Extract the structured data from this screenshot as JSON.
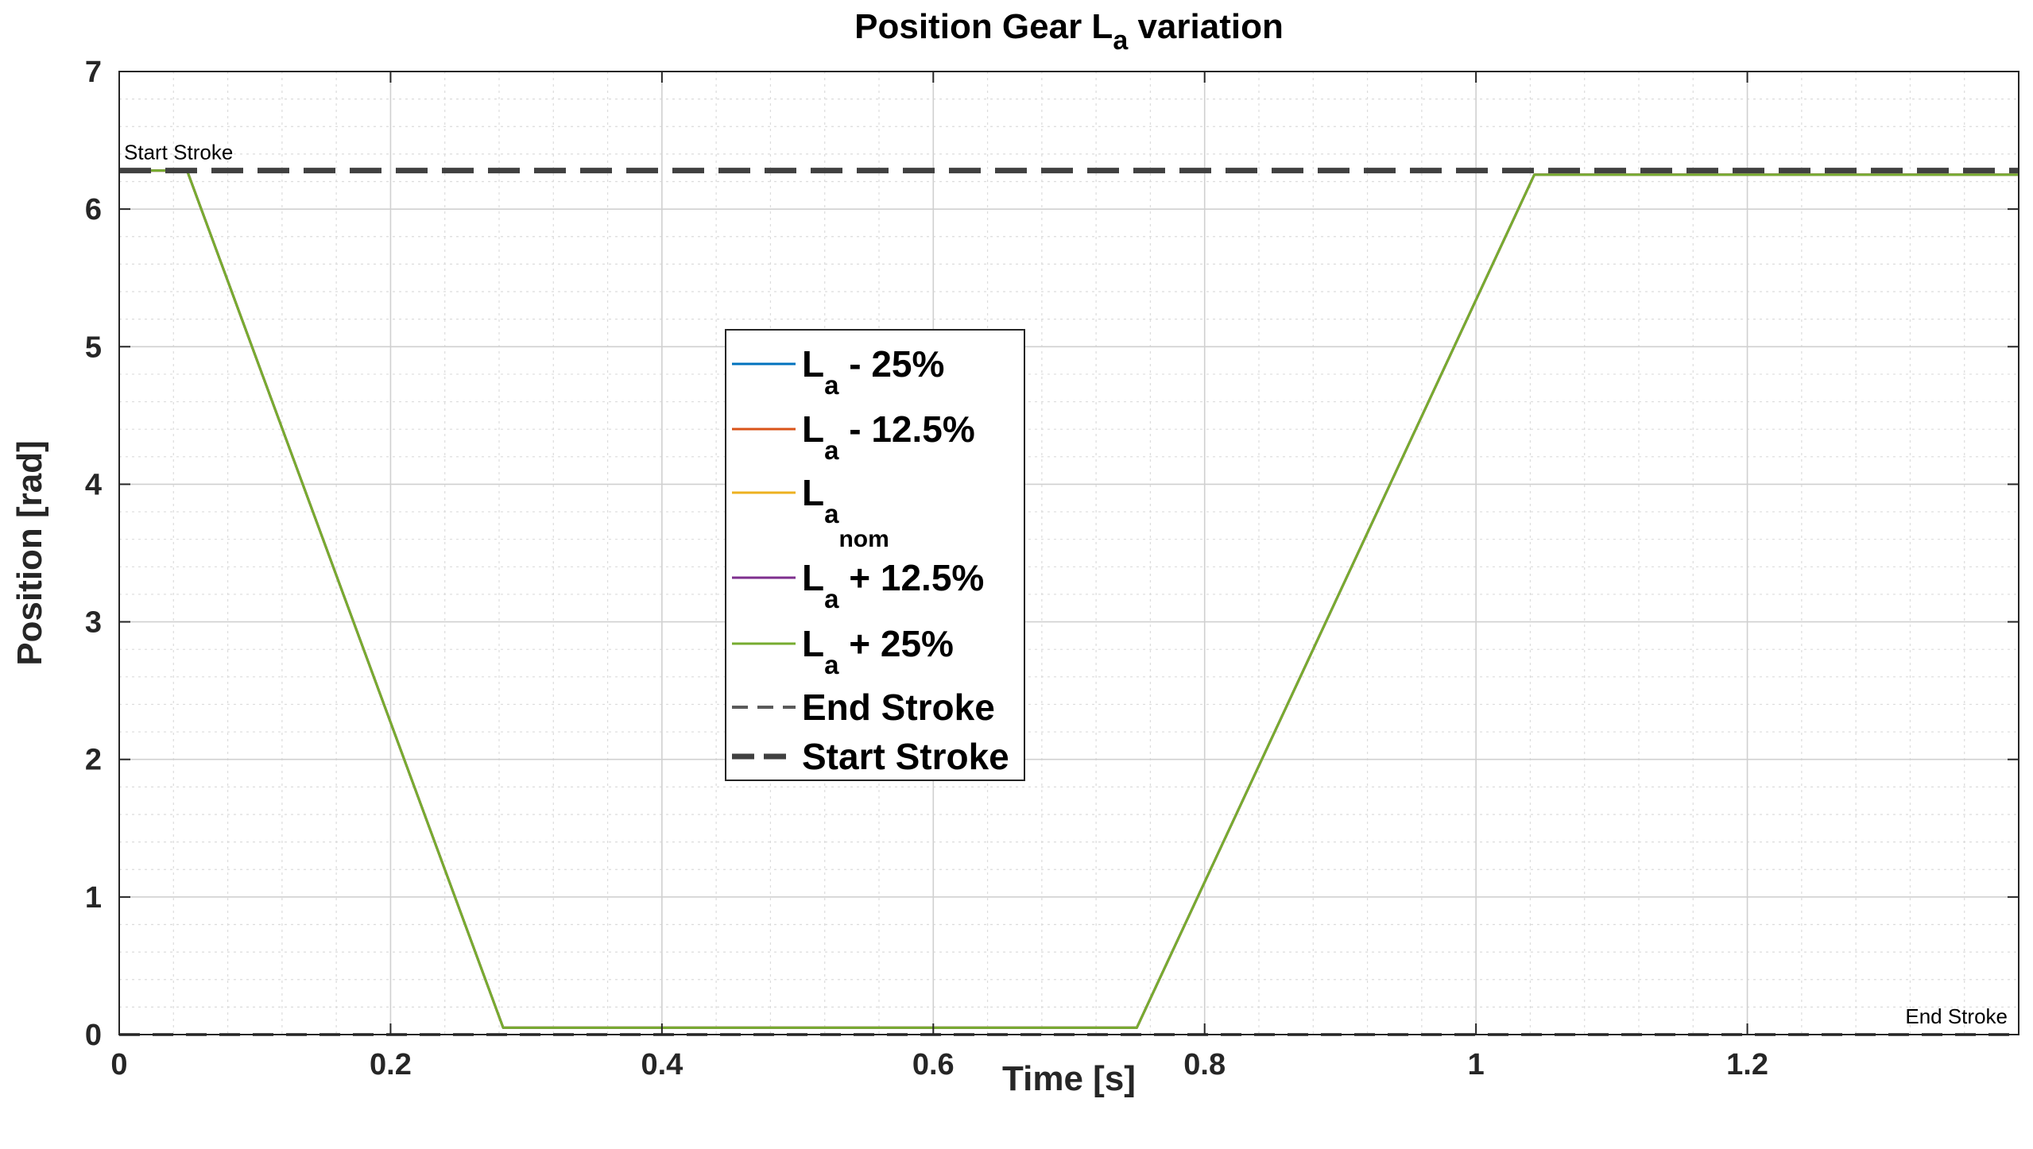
{
  "chart_data": {
    "type": "line",
    "title": {
      "main": "Position Gear L",
      "sub": "a",
      "rest": " variation"
    },
    "xlabel": "Time [s]",
    "ylabel": "Position [rad]",
    "xlim": [
      0,
      1.4
    ],
    "ylim": [
      0,
      7
    ],
    "xticks": [
      0,
      0.2,
      0.4,
      0.6,
      0.8,
      1,
      1.2
    ],
    "xtick_labels": [
      "0",
      "0.2",
      "0.4",
      "0.6",
      "0.8",
      "1",
      "1.2"
    ],
    "yticks": [
      0,
      1,
      2,
      3,
      4,
      5,
      6,
      7
    ],
    "ytick_labels": [
      "0",
      "1",
      "2",
      "3",
      "4",
      "5",
      "6",
      "7"
    ],
    "grid": true,
    "minor_grid": true,
    "legend_placement": "center-left",
    "series": [
      {
        "name": {
          "main": "L",
          "sub": "a",
          "rest": " - 25%"
        },
        "color": "#0072BD",
        "style": "solid",
        "x": [
          0,
          0.05,
          0.283,
          0.75,
          1.043,
          1.4
        ],
        "y": [
          6.28,
          6.28,
          0.05,
          0.05,
          6.25,
          6.25
        ]
      },
      {
        "name": {
          "main": "L",
          "sub": "a",
          "rest": " - 12.5%"
        },
        "color": "#D95319",
        "style": "solid",
        "x": [
          0,
          0.05,
          0.283,
          0.75,
          1.043,
          1.4
        ],
        "y": [
          6.28,
          6.28,
          0.05,
          0.05,
          6.25,
          6.25
        ]
      },
      {
        "name": {
          "main": "L",
          "sub": "a",
          "subsub": "nom",
          "rest": ""
        },
        "color": "#EDB120",
        "style": "solid",
        "x": [
          0,
          0.05,
          0.283,
          0.75,
          1.043,
          1.4
        ],
        "y": [
          6.28,
          6.28,
          0.05,
          0.05,
          6.25,
          6.25
        ]
      },
      {
        "name": {
          "main": "L",
          "sub": "a",
          "rest": " + 12.5%"
        },
        "color": "#7E2F8E",
        "style": "solid",
        "x": [
          0,
          0.05,
          0.283,
          0.75,
          1.043,
          1.4
        ],
        "y": [
          6.28,
          6.28,
          0.05,
          0.05,
          6.25,
          6.25
        ]
      },
      {
        "name": {
          "main": "L",
          "sub": "a",
          "rest": " + 25%"
        },
        "color": "#77AC30",
        "style": "solid",
        "x": [
          0,
          0.05,
          0.283,
          0.75,
          1.043,
          1.4
        ],
        "y": [
          6.28,
          6.28,
          0.05,
          0.05,
          6.25,
          6.25
        ]
      },
      {
        "name": {
          "main": "End Stroke",
          "sub": "",
          "rest": ""
        },
        "color": "#5a5a5a",
        "style": "dashed",
        "x": [
          0,
          1.4
        ],
        "y": [
          0,
          0
        ]
      },
      {
        "name": {
          "main": "Start Stroke",
          "sub": "",
          "rest": ""
        },
        "color": "#404040",
        "style": "dashed-thick",
        "x": [
          0,
          1.4
        ],
        "y": [
          6.28,
          6.28
        ]
      }
    ],
    "annotations": [
      {
        "text": "Start Stroke",
        "x": 0,
        "y": 6.28,
        "anchor": "start"
      },
      {
        "text": "End Stroke",
        "x": 1.4,
        "y": 0,
        "anchor": "end"
      }
    ]
  }
}
